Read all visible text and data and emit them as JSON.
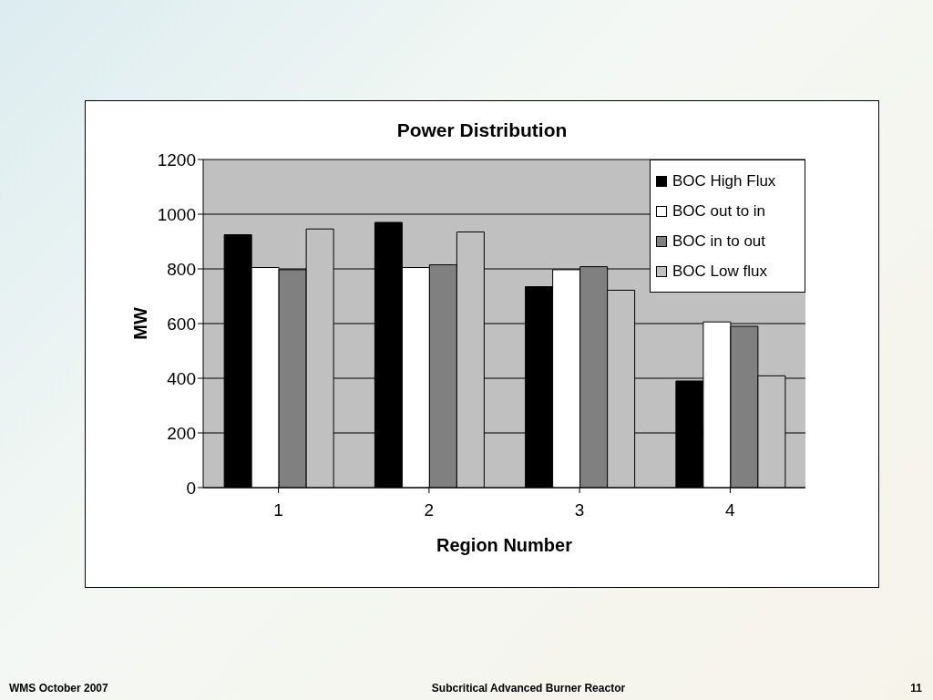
{
  "chart_data": {
    "type": "bar",
    "title": "Power Distribution",
    "xlabel": "Region Number",
    "ylabel": "MW",
    "categories": [
      "1",
      "2",
      "3",
      "4"
    ],
    "series": [
      {
        "name": "BOC High Flux",
        "color": "#000000",
        "values": [
          925,
          970,
          735,
          390
        ]
      },
      {
        "name": "BOC out to in",
        "color": "#ffffff",
        "values": [
          805,
          805,
          797,
          606
        ]
      },
      {
        "name": "BOC in to out",
        "color": "#808080",
        "values": [
          797,
          815,
          808,
          590
        ]
      },
      {
        "name": "BOC Low flux",
        "color": "#c0c0c0",
        "values": [
          946,
          935,
          722,
          409
        ]
      }
    ],
    "ylim": [
      0,
      1200
    ],
    "yticks": [
      0,
      200,
      400,
      600,
      800,
      1000,
      1200
    ],
    "grid": "y",
    "legend": "top right",
    "annotations": [
      "WMS October 2007",
      "Subcritical Advanced Burner Reactor",
      "11"
    ]
  }
}
